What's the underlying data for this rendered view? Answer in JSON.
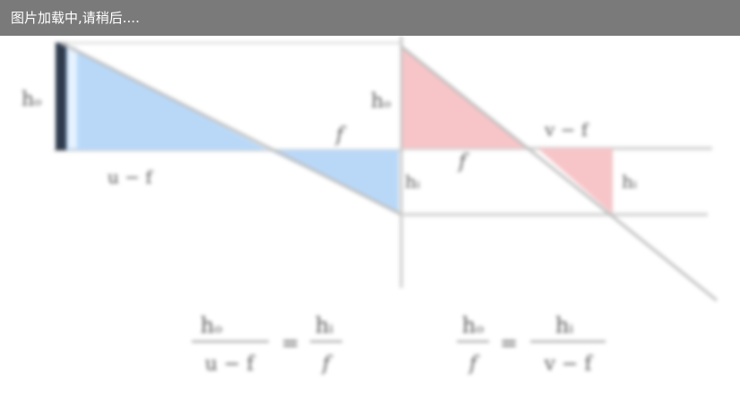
{
  "loading_text": "图片加载中,请稍后....",
  "colors": {
    "left_triangle_fill": "#b9d8f8",
    "right_triangle_fill": "#f7c5c8",
    "lines": "#bdbdbd",
    "dark_bar": "#2f3b4d",
    "loading_bar": "#7a7a7a"
  },
  "labels": {
    "h_left_top": "hₒ",
    "h_left_bottom": "hᵢ",
    "f_left": "f",
    "u_minus_f": "u − f",
    "h_right_top": "hₒ",
    "h_right_bottom": "hᵢ",
    "f_right": "f",
    "v_minus_f": "v − f"
  },
  "equations": {
    "left": {
      "num1": "hₒ",
      "den1": "u − f",
      "op": "=",
      "num2": "hᵢ",
      "den2": "f"
    },
    "right": {
      "num1": "hₒ",
      "den1": "f",
      "op": "=",
      "num2": "hᵢ",
      "den2": "v − f"
    }
  }
}
